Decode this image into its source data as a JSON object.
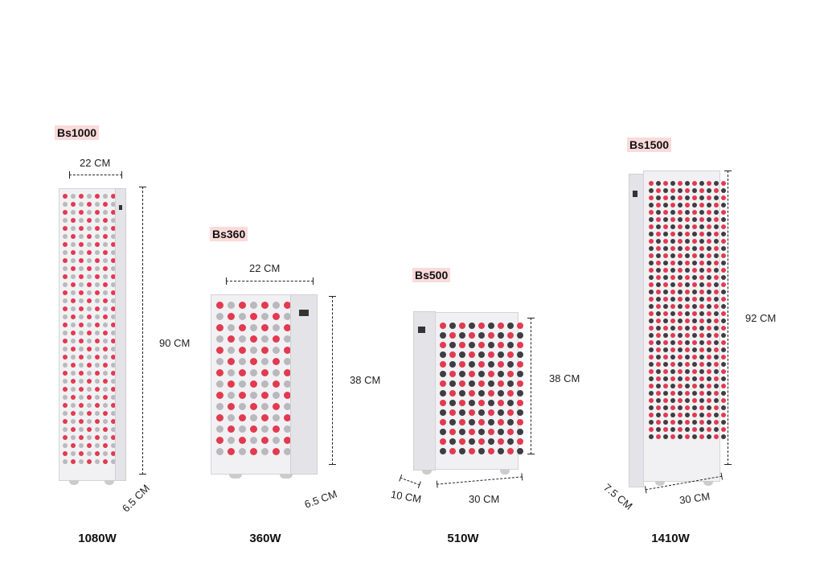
{
  "colors": {
    "led_red": "#e23a50",
    "led_gray": "#b9b9bd",
    "led_dark": "#3e3e42",
    "label_bg": "#fbdada"
  },
  "products": [
    {
      "model": "Bs1000",
      "width": "22 CM",
      "height": "90 CM",
      "depth": "6.5 CM",
      "power": "1080W"
    },
    {
      "model": "Bs360",
      "width": "22 CM",
      "height": "38 CM",
      "depth": "6.5 CM",
      "power": "360W"
    },
    {
      "model": "Bs500",
      "height": "38 CM",
      "depth": "10 CM",
      "width": "30 CM",
      "power": "510W"
    },
    {
      "model": "Bs1500",
      "height": "92 CM",
      "depth": "7.5 CM",
      "width": "30 CM",
      "power": "1410W"
    }
  ]
}
